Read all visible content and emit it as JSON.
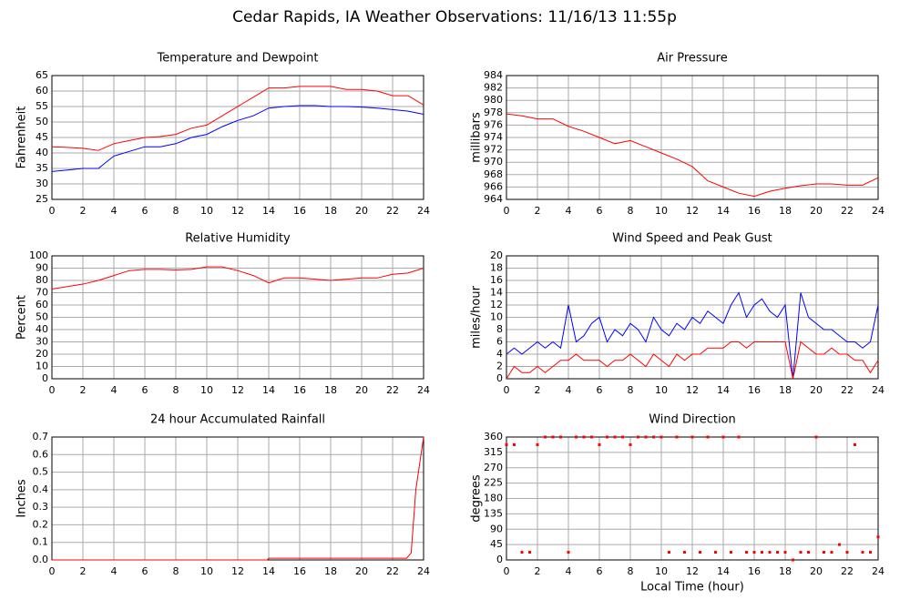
{
  "title": "Cedar Rapids, IA Weather Observations: 11/16/13 11:55p",
  "chart_data": [
    {
      "type": "line",
      "title": "Temperature and Dewpoint",
      "y_label": "Fahrenheit",
      "x": [
        0,
        1,
        2,
        3,
        4,
        5,
        6,
        7,
        8,
        9,
        10,
        11,
        12,
        13,
        14,
        15,
        16,
        17,
        18,
        19,
        20,
        21,
        22,
        23,
        24
      ],
      "series": [
        {
          "color": "#ff0000",
          "values": [
            42,
            41.8,
            41.5,
            40.8,
            43,
            44,
            45,
            45.3,
            46,
            48,
            49,
            52,
            55,
            58,
            61,
            61,
            61.5,
            61.5,
            61.5,
            60.5,
            60.5,
            60,
            58.5,
            58.5,
            55.5
          ]
        },
        {
          "color": "#0000ff",
          "values": [
            34,
            34.5,
            35,
            35,
            39,
            40.5,
            42,
            42,
            43,
            45,
            46,
            48.5,
            50.5,
            52,
            54.5,
            55,
            55.3,
            55.3,
            55,
            55,
            54.8,
            54.5,
            54,
            53.5,
            52.5
          ]
        }
      ],
      "xlim": [
        0,
        24
      ],
      "xticks": [
        0,
        2,
        4,
        6,
        8,
        10,
        12,
        14,
        16,
        18,
        20,
        22,
        24
      ],
      "ylim": [
        25,
        65
      ],
      "yticks": [
        25,
        30,
        35,
        40,
        45,
        50,
        55,
        60,
        65
      ],
      "grid": true
    },
    {
      "type": "line",
      "title": "Air Pressure",
      "y_label": "millibars",
      "x": [
        0,
        1,
        2,
        3,
        4,
        5,
        6,
        7,
        8,
        9,
        10,
        11,
        12,
        13,
        14,
        15,
        16,
        17,
        18,
        19,
        20,
        21,
        22,
        23,
        24
      ],
      "series": [
        {
          "color": "#ff0000",
          "values": [
            977.8,
            977.5,
            977,
            977,
            975.8,
            975,
            974,
            973,
            973.5,
            972.5,
            971.5,
            970.5,
            969.3,
            967,
            966,
            965,
            964.5,
            965.3,
            965.8,
            966.2,
            966.5,
            966.5,
            966.3,
            966.3,
            967.5
          ]
        }
      ],
      "xlim": [
        0,
        24
      ],
      "xticks": [
        0,
        2,
        4,
        6,
        8,
        10,
        12,
        14,
        16,
        18,
        20,
        22,
        24
      ],
      "ylim": [
        964,
        984
      ],
      "yticks": [
        964,
        966,
        968,
        970,
        972,
        974,
        976,
        978,
        980,
        982,
        984
      ],
      "grid": true
    },
    {
      "type": "line",
      "title": "Relative Humidity",
      "y_label": "Percent",
      "x": [
        0,
        1,
        2,
        3,
        4,
        5,
        6,
        7,
        8,
        9,
        10,
        11,
        12,
        13,
        14,
        15,
        16,
        17,
        18,
        19,
        20,
        21,
        22,
        23,
        24
      ],
      "series": [
        {
          "color": "#ff0000",
          "values": [
            73,
            75,
            77,
            80,
            84,
            88,
            89,
            89,
            88.5,
            89,
            91,
            91,
            88,
            84,
            78,
            82,
            82,
            81,
            80,
            81,
            82,
            82,
            85,
            86,
            90
          ]
        }
      ],
      "xlim": [
        0,
        24
      ],
      "xticks": [
        0,
        2,
        4,
        6,
        8,
        10,
        12,
        14,
        16,
        18,
        20,
        22,
        24
      ],
      "ylim": [
        0,
        100
      ],
      "yticks": [
        0,
        10,
        20,
        30,
        40,
        50,
        60,
        70,
        80,
        90,
        100
      ],
      "grid": true
    },
    {
      "type": "line",
      "title": "Wind Speed and Peak Gust",
      "y_label": "miles/hour",
      "x": [
        0,
        0.5,
        1,
        1.5,
        2,
        2.5,
        3,
        3.5,
        4,
        4.5,
        5,
        5.5,
        6,
        6.5,
        7,
        7.5,
        8,
        8.5,
        9,
        9.5,
        10,
        10.5,
        11,
        11.5,
        12,
        12.5,
        13,
        13.5,
        14,
        14.5,
        15,
        15.5,
        16,
        16.5,
        17,
        17.5,
        18,
        18.5,
        19,
        19.5,
        20,
        20.5,
        21,
        21.5,
        22,
        22.5,
        23,
        23.5,
        24
      ],
      "series": [
        {
          "color": "#0000ff",
          "values": [
            4,
            5,
            4,
            5,
            6,
            5,
            6,
            5,
            12,
            6,
            7,
            9,
            10,
            6,
            8,
            7,
            9,
            8,
            6,
            10,
            8,
            7,
            9,
            8,
            10,
            9,
            11,
            10,
            9,
            12,
            14,
            10,
            12,
            13,
            11,
            10,
            12,
            0,
            14,
            10,
            9,
            8,
            8,
            7,
            6,
            6,
            5,
            6,
            12
          ]
        },
        {
          "color": "#ff0000",
          "values": [
            0,
            2,
            1,
            1,
            2,
            1,
            2,
            3,
            3,
            4,
            3,
            3,
            3,
            2,
            3,
            3,
            4,
            3,
            2,
            4,
            3,
            2,
            4,
            3,
            4,
            4,
            5,
            5,
            5,
            6,
            6,
            5,
            6,
            6,
            6,
            6,
            6,
            0,
            6,
            5,
            4,
            4,
            5,
            4,
            4,
            3,
            3,
            1,
            3
          ]
        }
      ],
      "xlim": [
        0,
        24
      ],
      "xticks": [
        0,
        2,
        4,
        6,
        8,
        10,
        12,
        14,
        16,
        18,
        20,
        22,
        24
      ],
      "ylim": [
        0,
        20
      ],
      "yticks": [
        0,
        2,
        4,
        6,
        8,
        10,
        12,
        14,
        16,
        18,
        20
      ],
      "grid": true
    },
    {
      "type": "line",
      "title": "24 hour Accumulated Rainfall",
      "y_label": "Inches",
      "x": [
        0,
        13.9,
        14,
        22.9,
        23.2,
        23.5,
        24
      ],
      "series": [
        {
          "color": "#ff0000",
          "values": [
            0,
            0,
            0.01,
            0.01,
            0.04,
            0.4,
            0.7
          ]
        }
      ],
      "xlim": [
        0,
        24
      ],
      "xticks": [
        0,
        2,
        4,
        6,
        8,
        10,
        12,
        14,
        16,
        18,
        20,
        22,
        24
      ],
      "ylim": [
        0,
        0.7
      ],
      "yticks": [
        {
          "value": 0,
          "label": "0.0"
        },
        0.1,
        0.2,
        0.3,
        0.4,
        0.5,
        0.6,
        0.7
      ],
      "grid": true
    },
    {
      "type": "scatter",
      "title": "Wind Direction",
      "y_label": "degrees",
      "x_label": "Local Time (hour)",
      "x": [
        0,
        0.5,
        1,
        1.5,
        2,
        2.5,
        3,
        3.5,
        4,
        4.5,
        5,
        5.5,
        6,
        6.5,
        7,
        7.5,
        8,
        8.5,
        9,
        9.5,
        10,
        10.5,
        11,
        11.5,
        12,
        12.5,
        13,
        13.5,
        14,
        14.5,
        15,
        15.5,
        16,
        16.5,
        17,
        17.5,
        18,
        18.5,
        19,
        19.5,
        20,
        20.5,
        21,
        21.5,
        22,
        22.5,
        23,
        23.5,
        24
      ],
      "series": [
        {
          "color": "#ff0000",
          "values": [
            337.5,
            337.5,
            22.5,
            22.5,
            337.5,
            360,
            360,
            360,
            22.5,
            360,
            360,
            360,
            337.5,
            360,
            360,
            360,
            337.5,
            360,
            360,
            360,
            360,
            22.5,
            360,
            22.5,
            360,
            22.5,
            360,
            22.5,
            360,
            22.5,
            360,
            22.5,
            22.5,
            22.5,
            22.5,
            22.5,
            22.5,
            0,
            22.5,
            22.5,
            360,
            22.5,
            22.5,
            45,
            22.5,
            337.5,
            22.5,
            22.5,
            67.5
          ]
        }
      ],
      "xlim": [
        0,
        24
      ],
      "xticks": [
        0,
        2,
        4,
        6,
        8,
        10,
        12,
        14,
        16,
        18,
        20,
        22,
        24
      ],
      "ylim": [
        0,
        360
      ],
      "yticks": [
        0,
        45,
        90,
        135,
        180,
        225,
        270,
        315,
        360
      ],
      "grid": true
    }
  ]
}
